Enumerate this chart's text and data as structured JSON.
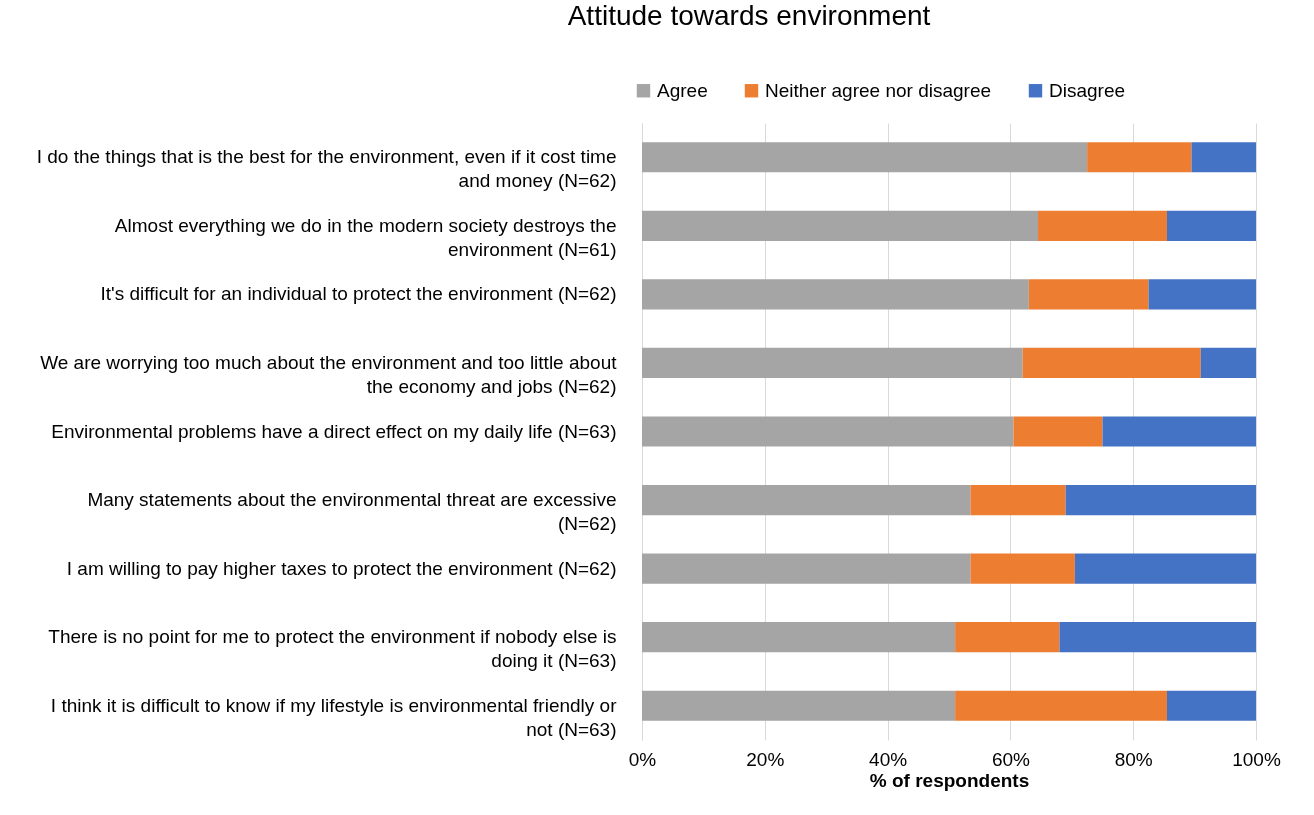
{
  "chart_data": {
    "type": "bar",
    "orientation": "horizontal",
    "stacked": true,
    "title": "Attitude towards environment",
    "xlabel": "% of respondents",
    "categories": [
      "I do the things that is the best for the environment, even if it cost time and money (N=62)",
      "Almost everything we do in the modern society destroys the environment (N=61)",
      "It's difficult for an individual to protect the environment (N=62)",
      "We are worrying too much about the environment and too little about the economy and jobs (N=62)",
      "Environmental problems have a direct effect on my daily life  (N=63)",
      "Many statements about the environmental threat are excessive (N=62)",
      "I am willing to pay higher taxes to protect the environment  (N=62)",
      "There is no point for me to protect the environment if nobody else is doing it (N=63)",
      "I think it is difficult to know if my lifestyle is environmental friendly or not (N=63)"
    ],
    "series": [
      {
        "name": "Agree",
        "color": "#a5a5a5",
        "values": [
          72.5,
          64.5,
          63,
          62,
          60.5,
          53.5,
          53.5,
          51,
          51
        ]
      },
      {
        "name": "Neither agree nor disagree",
        "color": "#ed7d31",
        "values": [
          17,
          21,
          19.5,
          29,
          14.5,
          15.5,
          17,
          17,
          34.5
        ]
      },
      {
        "name": "Disagree",
        "color": "#4472c4",
        "values": [
          10.5,
          14.5,
          17.5,
          9,
          25,
          31,
          29.5,
          32,
          14.5
        ]
      }
    ],
    "xlim": [
      0,
      100
    ],
    "xticks": [
      {
        "value": 0,
        "label": "0%"
      },
      {
        "value": 20,
        "label": "20%"
      },
      {
        "value": 40,
        "label": "40%"
      },
      {
        "value": 60,
        "label": "60%"
      },
      {
        "value": 80,
        "label": "80%"
      },
      {
        "value": 100,
        "label": "100%"
      }
    ],
    "grid": "x",
    "legend": "top"
  }
}
